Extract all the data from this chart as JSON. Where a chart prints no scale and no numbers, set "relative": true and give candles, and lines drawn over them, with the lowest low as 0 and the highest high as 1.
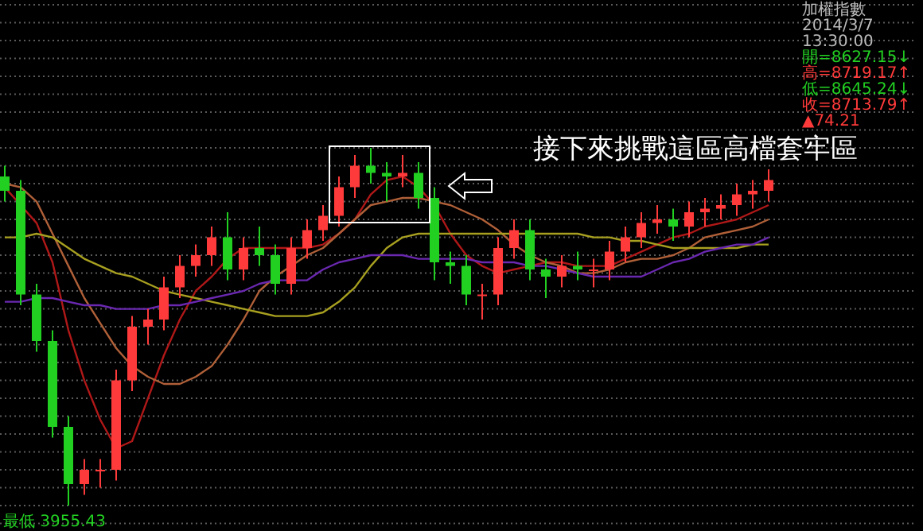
{
  "chart_data": {
    "type": "candlestick",
    "relative": true,
    "grid": "y",
    "categories": [
      null,
      null,
      null,
      null,
      null,
      null,
      null,
      null,
      null,
      null,
      null,
      null,
      null,
      null,
      null,
      null,
      null,
      null,
      null,
      null,
      null,
      null,
      null,
      null,
      null,
      null,
      null,
      null,
      null,
      null,
      null,
      null,
      null,
      null,
      null,
      null,
      null,
      null,
      null,
      null,
      null,
      null,
      null,
      null,
      null,
      null,
      null,
      null,
      null
    ],
    "ohlc": [
      [
        0.92,
        0.95,
        0.85,
        0.88
      ],
      [
        0.88,
        0.91,
        0.56,
        0.59
      ],
      [
        0.59,
        0.62,
        0.43,
        0.46
      ],
      [
        0.46,
        0.49,
        0.19,
        0.22
      ],
      [
        0.22,
        0.25,
        0,
        0.06
      ],
      [
        0.06,
        0.13,
        0.03,
        0.1
      ],
      [
        0.1,
        0.13,
        0.05,
        0.1
      ],
      [
        0.1,
        0.38,
        0.07,
        0.35
      ],
      [
        0.35,
        0.53,
        0.32,
        0.5
      ],
      [
        0.5,
        0.55,
        0.45,
        0.52
      ],
      [
        0.52,
        0.64,
        0.49,
        0.61
      ],
      [
        0.61,
        0.7,
        0.58,
        0.67
      ],
      [
        0.67,
        0.73,
        0.64,
        0.7
      ],
      [
        0.7,
        0.78,
        0.67,
        0.75
      ],
      [
        0.75,
        0.82,
        0.63,
        0.66
      ],
      [
        0.66,
        0.75,
        0.63,
        0.72
      ],
      [
        0.72,
        0.78,
        0.67,
        0.7
      ],
      [
        0.7,
        0.73,
        0.59,
        0.62
      ],
      [
        0.62,
        0.75,
        0.59,
        0.72
      ],
      [
        0.72,
        0.8,
        0.69,
        0.77
      ],
      [
        0.77,
        0.84,
        0.74,
        0.81
      ],
      [
        0.81,
        0.92,
        0.78,
        0.89
      ],
      [
        0.89,
        0.98,
        0.86,
        0.95
      ],
      [
        0.95,
        1,
        0.9,
        0.93
      ],
      [
        0.93,
        0.96,
        0.85,
        0.92
      ],
      [
        0.92,
        0.98,
        0.89,
        0.93
      ],
      [
        0.93,
        0.96,
        0.83,
        0.86
      ],
      [
        0.86,
        0.89,
        0.63,
        0.68
      ],
      [
        0.68,
        0.71,
        0.62,
        0.67
      ],
      [
        0.67,
        0.7,
        0.56,
        0.59
      ],
      [
        0.59,
        0.62,
        0.52,
        0.59
      ],
      [
        0.59,
        0.75,
        0.56,
        0.72
      ],
      [
        0.72,
        0.8,
        0.69,
        0.77
      ],
      [
        0.77,
        0.8,
        0.63,
        0.66
      ],
      [
        0.66,
        0.69,
        0.58,
        0.64
      ],
      [
        0.64,
        0.7,
        0.61,
        0.67
      ],
      [
        0.67,
        0.71,
        0.63,
        0.66
      ],
      [
        0.66,
        0.69,
        0.61,
        0.66
      ],
      [
        0.66,
        0.74,
        0.63,
        0.71
      ],
      [
        0.71,
        0.78,
        0.68,
        0.75
      ],
      [
        0.75,
        0.82,
        0.72,
        0.79
      ],
      [
        0.79,
        0.84,
        0.76,
        0.8
      ],
      [
        0.8,
        0.83,
        0.74,
        0.78
      ],
      [
        0.78,
        0.85,
        0.75,
        0.82
      ],
      [
        0.82,
        0.86,
        0.78,
        0.83
      ],
      [
        0.83,
        0.87,
        0.8,
        0.84
      ],
      [
        0.84,
        0.9,
        0.81,
        0.87
      ],
      [
        0.87,
        0.91,
        0.83,
        0.88
      ],
      [
        0.88,
        0.94,
        0.85,
        0.91
      ]
    ],
    "series": [
      {
        "type": "line",
        "color": "#b01818",
        "values": [
          0.89,
          0.84,
          0.79,
          0.68,
          0.49,
          0.35,
          0.24,
          0.16,
          0.18,
          0.3,
          0.42,
          0.52,
          0.6,
          0.64,
          0.69,
          0.72,
          0.72,
          0.72,
          0.72,
          0.72,
          0.73,
          0.76,
          0.8,
          0.87,
          0.91,
          0.92,
          0.89,
          0.84,
          0.76,
          0.7,
          0.67,
          0.65,
          0.66,
          0.67,
          0.68,
          0.68,
          0.67,
          0.67,
          0.67,
          0.69,
          0.71,
          0.73,
          0.75,
          0.76,
          0.78,
          0.79,
          0.8,
          0.82,
          0.84
        ]
      },
      {
        "type": "line",
        "color": "#b06038",
        "values": [
          0.9,
          0.89,
          0.85,
          0.76,
          0.67,
          0.58,
          0.51,
          0.44,
          0.39,
          0.36,
          0.34,
          0.34,
          0.36,
          0.39,
          0.45,
          0.52,
          0.6,
          0.64,
          0.67,
          0.7,
          0.72,
          0.76,
          0.8,
          0.84,
          0.85,
          0.86,
          0.86,
          0.85,
          0.84,
          0.82,
          0.8,
          0.77,
          0.73,
          0.7,
          0.68,
          0.67,
          0.65,
          0.65,
          0.66,
          0.68,
          0.69,
          0.69,
          0.7,
          0.72,
          0.75,
          0.76,
          0.77,
          0.78,
          0.8
        ]
      },
      {
        "type": "line",
        "color": "#a8a020",
        "values": [
          0.75,
          0.75,
          0.76,
          0.75,
          0.72,
          0.69,
          0.67,
          0.65,
          0.64,
          0.62,
          0.6,
          0.59,
          0.58,
          0.57,
          0.56,
          0.55,
          0.54,
          0.53,
          0.53,
          0.53,
          0.54,
          0.57,
          0.61,
          0.67,
          0.72,
          0.75,
          0.76,
          0.76,
          0.76,
          0.76,
          0.76,
          0.76,
          0.76,
          0.76,
          0.76,
          0.76,
          0.76,
          0.75,
          0.75,
          0.74,
          0.74,
          0.73,
          0.72,
          0.72,
          0.72,
          0.72,
          0.72,
          0.73,
          0.73
        ]
      },
      {
        "type": "line",
        "color": "#6a28b0",
        "values": [
          0.57,
          0.57,
          0.58,
          0.58,
          0.57,
          0.56,
          0.56,
          0.55,
          0.55,
          0.55,
          0.56,
          0.56,
          0.57,
          0.58,
          0.59,
          0.6,
          0.62,
          0.63,
          0.63,
          0.63,
          0.66,
          0.68,
          0.69,
          0.7,
          0.7,
          0.7,
          0.69,
          0.69,
          0.69,
          0.69,
          0.68,
          0.68,
          0.68,
          0.67,
          0.67,
          0.66,
          0.65,
          0.64,
          0.64,
          0.64,
          0.64,
          0.66,
          0.68,
          0.69,
          0.71,
          0.72,
          0.73,
          0.73,
          0.75
        ]
      }
    ],
    "annotations": [
      "接下來挑戰這區高檔套牢區",
      "加權指數",
      "2014/3/7",
      "13:30:00",
      "開=8627.15↓",
      "高=8719.17↑",
      "低=8645.24↓",
      "收=8713.79↑",
      "▲74.21",
      "最低 3955.43"
    ]
  }
}
